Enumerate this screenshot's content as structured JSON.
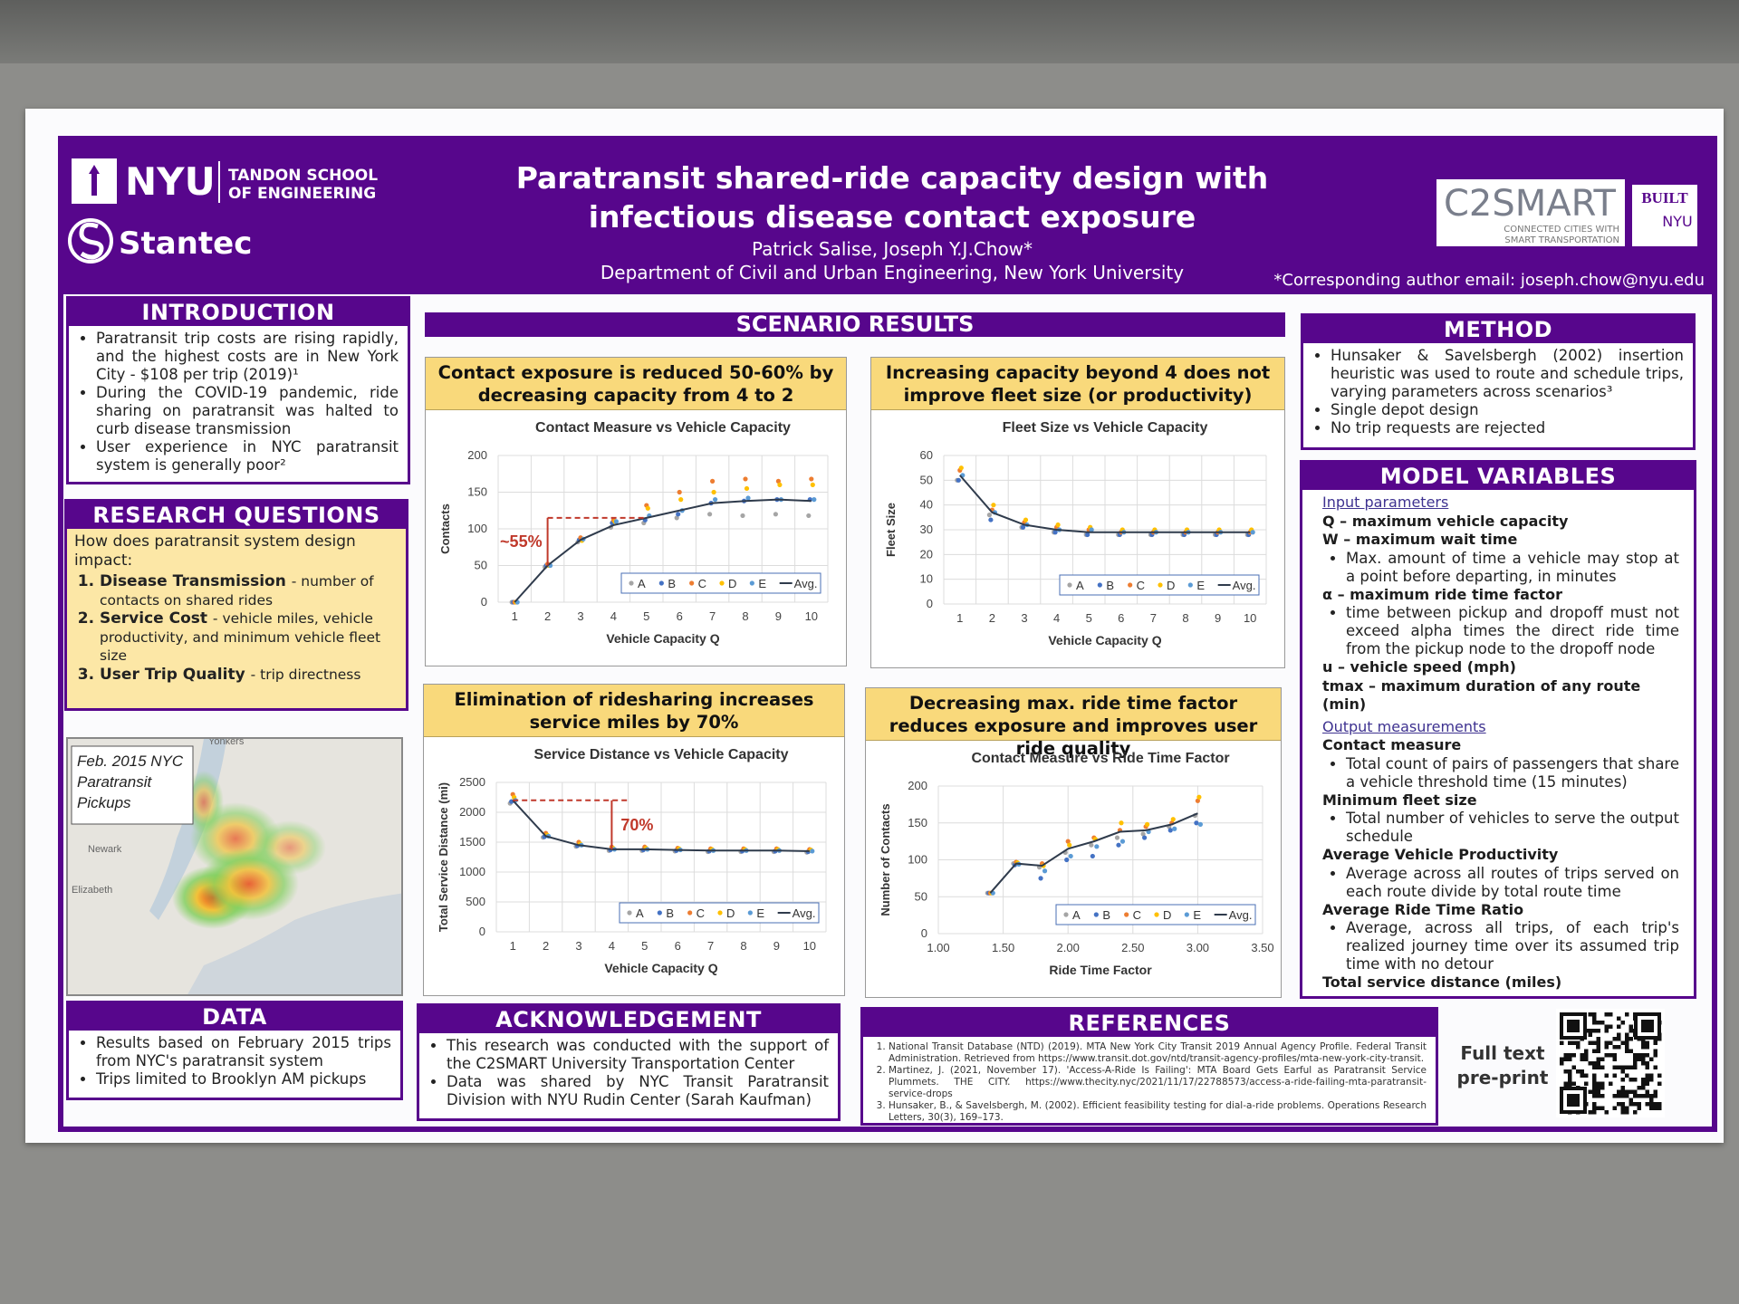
{
  "header": {
    "title_line1": "Paratransit shared-ride capacity design with",
    "title_line2": "infectious disease contact exposure",
    "authors": "Patrick Salise, Joseph Y.J.Chow*",
    "affiliation": "Department of Civil and Urban Engineering, New York University",
    "email": "*Corresponding author email: joseph.chow@nyu.edu",
    "logos": {
      "nyu": "NYU",
      "tandon_line1": "TANDON SCHOOL",
      "tandon_line2": "OF ENGINEERING",
      "stantec": "Stantec",
      "c2smart": "C2SMART",
      "c2smart_tag1": "CONNECTED CITIES WITH",
      "c2smart_tag2": "SMART TRANSPORTATION",
      "built": "BUILT",
      "built_nyu": "NYU"
    }
  },
  "introduction": {
    "heading": "INTRODUCTION",
    "bullets": [
      "Paratransit trip costs are rising rapidly, and the highest costs are in New York City - $108 per trip (2019)¹",
      "During the COVID-19 pandemic, ride sharing on paratransit was halted to curb disease transmission",
      "User experience in NYC paratransit system is generally poor²"
    ]
  },
  "research_questions": {
    "heading": "RESEARCH QUESTIONS",
    "intro": "How does paratransit system design impact:",
    "items": [
      {
        "term": "Disease Transmission",
        "text": "- number of contacts on shared rides"
      },
      {
        "term": "Service Cost",
        "text": "- vehicle miles, vehicle productivity, and minimum vehicle fleet size"
      },
      {
        "term": "User Trip Quality",
        "text": "- trip directness"
      }
    ]
  },
  "map": {
    "caption_line1": "Feb. 2015 NYC",
    "caption_line2": "Paratransit",
    "caption_line3": "Pickups",
    "places": [
      "Yonkers",
      "Newark",
      "Elizabeth"
    ]
  },
  "data_section": {
    "heading": "DATA",
    "bullets": [
      "Results based on February 2015 trips from NYC's paratransit system",
      "Trips limited to Brooklyn AM pickups"
    ]
  },
  "scenario_results": {
    "heading": "SCENARIO RESULTS",
    "panels": [
      "Contact exposure is reduced 50-60% by decreasing capacity from 4 to 2",
      "Increasing capacity beyond 4 does not improve fleet size (or productivity)",
      "Elimination of ridesharing increases service miles by 70%",
      "Decreasing max. ride time factor reduces exposure and improves user ride quality"
    ]
  },
  "acknowledgement": {
    "heading": "ACKNOWLEDGEMENT",
    "bullets": [
      "This research was conducted with the support of the C2SMART University Transportation Center",
      "Data was shared by NYC Transit Paratransit Division with NYU Rudin Center (Sarah Kaufman)"
    ]
  },
  "references": {
    "heading": "REFERENCES",
    "items": [
      "National Transit Database (NTD) (2019). MTA New York City Transit 2019 Annual Agency Profile. Federal Transit Administration. Retrieved from https://www.transit.dot.gov/ntd/transit-agency-profiles/mta-new-york-city-transit.",
      "Martinez, J. (2021, November 17). 'Access-A-Ride Is Failing': MTA Board Gets Earful as Paratransit Service Plummets. THE CITY. https://www.thecity.nyc/2021/11/17/22788573/access-a-ride-failing-mta-paratransit-service-drops",
      "Hunsaker, B., & Savelsbergh, M. (2002). Efficient feasibility testing for dial-a-ride problems. Operations Research Letters, 30(3), 169–173."
    ]
  },
  "preprint": {
    "line1": "Full text",
    "line2": "pre-print"
  },
  "method": {
    "heading": "METHOD",
    "bullets": [
      "Hunsaker & Savelsbergh (2002) insertion heuristic was used to route and schedule trips, varying parameters across scenarios³",
      "Single depot design",
      "No trip requests are rejected"
    ]
  },
  "model_variables": {
    "heading": "MODEL VARIABLES",
    "input_heading": "Input parameters",
    "inputs": [
      {
        "term": "Q – maximum vehicle capacity"
      },
      {
        "term": "W – maximum wait time",
        "notes": [
          "Max. amount of time a vehicle may stop at a point before departing, in minutes"
        ]
      },
      {
        "term": "α – maximum ride time factor",
        "notes": [
          "time between pickup and dropoff must not exceed alpha times the direct ride time from the pickup node to the dropoff node"
        ]
      },
      {
        "term": "u – vehicle speed (mph)"
      },
      {
        "term": "tmax – maximum duration of any route (min)"
      }
    ],
    "output_heading": "Output measurements",
    "outputs": [
      {
        "term": "Contact measure",
        "notes": [
          "Total count of pairs of passengers that share a vehicle threshold time (15 minutes)"
        ]
      },
      {
        "term": "Minimum fleet size",
        "notes": [
          "Total number of vehicles to serve the output schedule"
        ]
      },
      {
        "term": "Average Vehicle Productivity",
        "notes": [
          "Average across all routes of trips served on each route divide by total route time"
        ]
      },
      {
        "term": "Average Ride Time Ratio",
        "notes": [
          "Average, across all trips, of each trip's realized journey time over its assumed trip time with no detour"
        ]
      },
      {
        "term": "Total service distance (miles)"
      }
    ]
  },
  "chart_data": [
    {
      "type": "line",
      "title": "Contact Measure vs Vehicle Capacity",
      "x_label": "Vehicle Capacity Q",
      "y_label": "Contacts",
      "categories": [
        "1",
        "2",
        "3",
        "4",
        "5",
        "6",
        "7",
        "8",
        "9",
        "10"
      ],
      "ylim": [
        0,
        200
      ],
      "yticks": [
        0,
        50,
        100,
        150,
        200
      ],
      "grid": true,
      "legend": "bottom-right",
      "annotation": "~55%",
      "series": [
        {
          "name": "A",
          "mode": "markers",
          "color": "#a5a5a5",
          "values": [
            0,
            48,
            82,
            102,
            108,
            115,
            120,
            118,
            120,
            118
          ]
        },
        {
          "name": "B",
          "mode": "markers",
          "color": "#4472c4",
          "values": [
            0,
            50,
            85,
            108,
            112,
            120,
            135,
            138,
            140,
            140
          ]
        },
        {
          "name": "C",
          "mode": "markers",
          "color": "#ed7d31",
          "values": [
            0,
            52,
            88,
            112,
            132,
            150,
            165,
            168,
            165,
            168
          ]
        },
        {
          "name": "D",
          "mode": "markers",
          "color": "#ffc000",
          "values": [
            0,
            50,
            84,
            110,
            128,
            140,
            150,
            155,
            160,
            160
          ]
        },
        {
          "name": "E",
          "mode": "markers",
          "color": "#5b9bd5",
          "values": [
            0,
            50,
            86,
            110,
            118,
            125,
            140,
            142,
            140,
            140
          ]
        },
        {
          "name": "Avg.",
          "mode": "line",
          "color": "#2f3b4c",
          "values": [
            0,
            50,
            85,
            105,
            115,
            125,
            135,
            138,
            140,
            138
          ]
        }
      ]
    },
    {
      "type": "line",
      "title": "Fleet Size vs Vehicle Capacity",
      "x_label": "Vehicle Capacity Q",
      "y_label": "Fleet Size",
      "categories": [
        "1",
        "2",
        "3",
        "4",
        "5",
        "6",
        "7",
        "8",
        "9",
        "10"
      ],
      "ylim": [
        0,
        60
      ],
      "yticks": [
        0,
        10,
        20,
        30,
        40,
        50,
        60
      ],
      "grid": true,
      "legend": "bottom-right",
      "series": [
        {
          "name": "A",
          "mode": "markers",
          "color": "#a5a5a5",
          "values": [
            50,
            36,
            31,
            29,
            28,
            28,
            28,
            28,
            28,
            28
          ]
        },
        {
          "name": "B",
          "mode": "markers",
          "color": "#4472c4",
          "values": [
            50,
            34,
            31,
            29,
            28,
            28,
            28,
            28,
            28,
            28
          ]
        },
        {
          "name": "C",
          "mode": "markers",
          "color": "#ed7d31",
          "values": [
            54,
            38,
            33,
            31,
            30,
            29,
            29,
            29,
            29,
            29
          ]
        },
        {
          "name": "D",
          "mode": "markers",
          "color": "#ffc000",
          "values": [
            55,
            40,
            34,
            32,
            31,
            30,
            30,
            30,
            30,
            30
          ]
        },
        {
          "name": "E",
          "mode": "markers",
          "color": "#5b9bd5",
          "values": [
            52,
            37,
            32,
            30,
            30,
            29,
            29,
            29,
            29,
            29
          ]
        },
        {
          "name": "Avg.",
          "mode": "line",
          "color": "#2f3b4c",
          "values": [
            52,
            37,
            32,
            30,
            29,
            29,
            29,
            29,
            29,
            29
          ]
        }
      ]
    },
    {
      "type": "line",
      "title": "Service Distance vs Vehicle Capacity",
      "x_label": "Vehicle Capacity Q",
      "y_label": "Total Service Distance (mi)",
      "categories": [
        "1",
        "2",
        "3",
        "4",
        "5",
        "6",
        "7",
        "8",
        "9",
        "10"
      ],
      "ylim": [
        0,
        2500
      ],
      "yticks": [
        0,
        500,
        1000,
        1500,
        2000,
        2500
      ],
      "grid": true,
      "legend": "bottom-right",
      "annotation": "70%",
      "series": [
        {
          "name": "A",
          "mode": "markers",
          "color": "#a5a5a5",
          "values": [
            2150,
            1580,
            1430,
            1360,
            1360,
            1350,
            1340,
            1340,
            1340,
            1330
          ]
        },
        {
          "name": "B",
          "mode": "markers",
          "color": "#4472c4",
          "values": [
            2180,
            1590,
            1440,
            1370,
            1370,
            1360,
            1350,
            1350,
            1350,
            1340
          ]
        },
        {
          "name": "C",
          "mode": "markers",
          "color": "#ed7d31",
          "values": [
            2300,
            1650,
            1500,
            1420,
            1420,
            1400,
            1390,
            1390,
            1390,
            1380
          ]
        },
        {
          "name": "D",
          "mode": "markers",
          "color": "#ffc000",
          "values": [
            2250,
            1620,
            1470,
            1400,
            1400,
            1390,
            1380,
            1380,
            1380,
            1370
          ]
        },
        {
          "name": "E",
          "mode": "markers",
          "color": "#5b9bd5",
          "values": [
            2200,
            1600,
            1450,
            1380,
            1380,
            1370,
            1360,
            1360,
            1360,
            1350
          ]
        },
        {
          "name": "Avg.",
          "mode": "line",
          "color": "#2f3b4c",
          "values": [
            2200,
            1600,
            1450,
            1380,
            1380,
            1370,
            1360,
            1360,
            1360,
            1350
          ]
        }
      ]
    },
    {
      "type": "line",
      "title": "Contact Measure vs Ride Time Factor",
      "x_label": "Ride Time Factor",
      "y_label": "Number of Contacts",
      "x": [
        1.4,
        1.6,
        1.8,
        2.0,
        2.2,
        2.4,
        2.6,
        2.8,
        3.0
      ],
      "xlim": [
        1,
        3.5
      ],
      "xticks": [
        {
          "value": 1,
          "label": "1.00"
        },
        {
          "value": 1.5,
          "label": "1.50"
        },
        {
          "value": 2,
          "label": "2.00"
        },
        {
          "value": 2.5,
          "label": "2.50"
        },
        {
          "value": 3,
          "label": "3.00"
        },
        {
          "value": 3.5,
          "label": "3.50"
        }
      ],
      "ylim": [
        0,
        200
      ],
      "yticks": [
        0,
        50,
        100,
        150,
        200
      ],
      "grid": true,
      "legend": "bottom-right",
      "series": [
        {
          "name": "A",
          "mode": "markers",
          "color": "#a5a5a5",
          "values": [
            55,
            95,
            90,
            110,
            120,
            130,
            135,
            145,
            160
          ]
        },
        {
          "name": "B",
          "mode": "markers",
          "color": "#4472c4",
          "values": [
            55,
            93,
            75,
            100,
            105,
            120,
            130,
            140,
            150
          ]
        },
        {
          "name": "C",
          "mode": "markers",
          "color": "#ed7d31",
          "values": [
            55,
            97,
            95,
            125,
            130,
            140,
            145,
            150,
            180
          ]
        },
        {
          "name": "D",
          "mode": "markers",
          "color": "#ffc000",
          "values": [
            55,
            96,
            92,
            120,
            128,
            150,
            148,
            155,
            185
          ]
        },
        {
          "name": "E",
          "mode": "markers",
          "color": "#5b9bd5",
          "values": [
            55,
            94,
            85,
            105,
            118,
            125,
            138,
            142,
            148
          ]
        },
        {
          "name": "Avg.",
          "mode": "line",
          "color": "#2f3b4c",
          "values": [
            55,
            95,
            92,
            115,
            125,
            138,
            140,
            148,
            163
          ]
        }
      ]
    }
  ]
}
